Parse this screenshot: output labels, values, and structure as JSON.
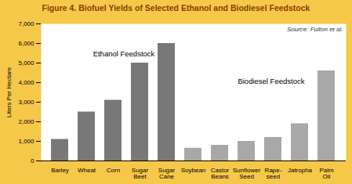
{
  "chart_data": {
    "type": "bar",
    "title": "Figure 4. Biofuel Yields of Selected Ethanol and Biodiesel Feedstock",
    "title_color": "#8B4000",
    "ylabel": "Liters Per Hectare",
    "categories": [
      "Barley",
      "Wheat",
      "Corn",
      "Sugar\nBeet",
      "Sugar\nCane",
      "Soybean",
      "Castor\nBeans",
      "Sunflower\nSeed",
      "Rape-\nseed",
      "Jatropha",
      "Palm\nOil"
    ],
    "values": [
      1100,
      2500,
      3100,
      5000,
      6000,
      650,
      800,
      1000,
      1200,
      1900,
      4600
    ],
    "colors": [
      "#787878",
      "#787878",
      "#787878",
      "#787878",
      "#787878",
      "#a8a8a8",
      "#a8a8a8",
      "#a8a8a8",
      "#a8a8a8",
      "#a8a8a8",
      "#a8a8a8"
    ],
    "ylim": [
      0,
      7000
    ],
    "yticks": [
      0,
      {
        "value": 1000,
        "label": "1,000"
      },
      {
        "value": 2000,
        "label": "2,000"
      },
      {
        "value": 3000,
        "label": "3,000"
      },
      {
        "value": 4000,
        "label": "4,000"
      },
      {
        "value": 5000,
        "label": "5,000"
      },
      {
        "value": 6000,
        "label": "6,000"
      },
      {
        "value": 7000,
        "label": "7,000"
      }
    ],
    "annotations": [
      "Source: Fulton et al.",
      "Ethanol Feedstock",
      "Biodiesel Feedstock"
    ],
    "grid": false
  }
}
